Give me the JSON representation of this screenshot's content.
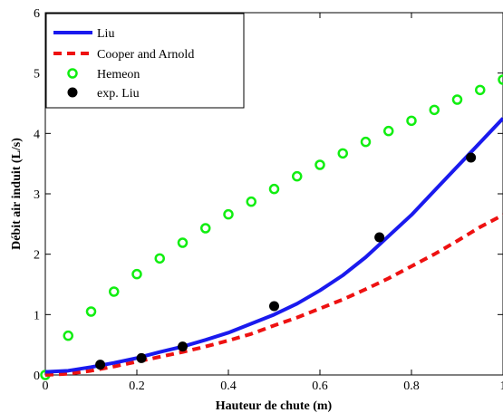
{
  "chart_data": {
    "type": "line",
    "xlabel": "Hauteur de chute (m)",
    "ylabel": "Débit air induit (L/s)",
    "xlim": [
      0,
      1
    ],
    "ylim": [
      0,
      6
    ],
    "xticks": [
      "0",
      "0.2",
      "0.4",
      "0.6",
      "0.8",
      "1"
    ],
    "yticks": [
      "0",
      "1",
      "2",
      "3",
      "4",
      "5",
      "6"
    ],
    "grid": false,
    "legend_position": "top-left",
    "series": [
      {
        "name": "Liu",
        "style": "solid-line",
        "color": "#1a1aee",
        "x": [
          0,
          0.05,
          0.1,
          0.15,
          0.2,
          0.25,
          0.3,
          0.35,
          0.4,
          0.45,
          0.5,
          0.55,
          0.6,
          0.65,
          0.7,
          0.75,
          0.8,
          0.85,
          0.9,
          0.95,
          1.0
        ],
        "y": [
          0.05,
          0.07,
          0.13,
          0.2,
          0.28,
          0.38,
          0.47,
          0.58,
          0.7,
          0.85,
          1.0,
          1.18,
          1.4,
          1.65,
          1.95,
          2.3,
          2.65,
          3.05,
          3.45,
          3.85,
          4.25
        ]
      },
      {
        "name": "Cooper and Arnold",
        "style": "dashed-line",
        "color": "#ee1111",
        "x": [
          0,
          0.05,
          0.1,
          0.15,
          0.2,
          0.25,
          0.3,
          0.35,
          0.4,
          0.45,
          0.5,
          0.55,
          0.6,
          0.65,
          0.7,
          0.75,
          0.8,
          0.85,
          0.9,
          0.95,
          1.0
        ],
        "y": [
          0.0,
          0.02,
          0.07,
          0.14,
          0.22,
          0.3,
          0.38,
          0.47,
          0.57,
          0.68,
          0.82,
          0.95,
          1.1,
          1.25,
          1.42,
          1.6,
          1.8,
          2.0,
          2.22,
          2.45,
          2.65
        ]
      },
      {
        "name": "Hemeon",
        "style": "open-circle",
        "color": "#11ee11",
        "x": [
          0,
          0.05,
          0.1,
          0.15,
          0.2,
          0.25,
          0.3,
          0.35,
          0.4,
          0.45,
          0.5,
          0.55,
          0.6,
          0.65,
          0.7,
          0.75,
          0.8,
          0.85,
          0.9,
          0.95,
          1.0
        ],
        "y": [
          0.0,
          0.65,
          1.05,
          1.38,
          1.67,
          1.93,
          2.19,
          2.43,
          2.66,
          2.87,
          3.08,
          3.29,
          3.48,
          3.67,
          3.86,
          4.04,
          4.21,
          4.39,
          4.56,
          4.72,
          4.89
        ]
      },
      {
        "name": "exp. Liu",
        "style": "filled-circle",
        "color": "#000000",
        "x": [
          0.12,
          0.21,
          0.3,
          0.5,
          0.73,
          0.93
        ],
        "y": [
          0.17,
          0.28,
          0.47,
          1.14,
          2.28,
          3.6
        ]
      }
    ]
  }
}
